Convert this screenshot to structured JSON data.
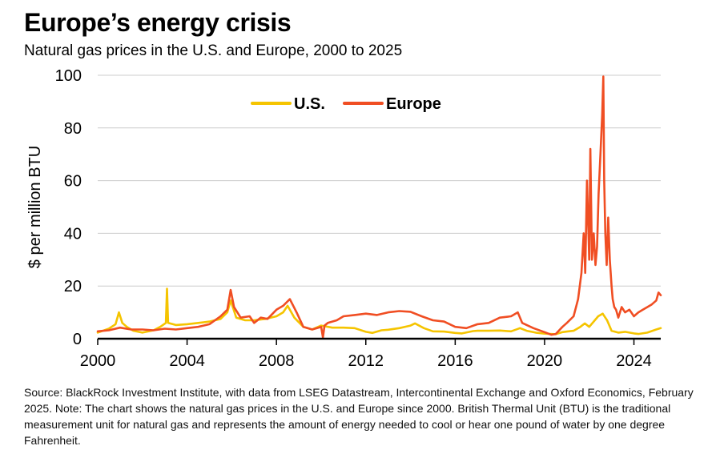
{
  "title": "Europe’s energy crisis",
  "subtitle": "Natural gas prices in the U.S. and Europe, 2000 to 2025",
  "source": "Source: BlackRock Investment Institute, with data from LSEG Datastream, Intercontinental Exchange and Oxford Economics, February 2025. Note: The chart shows the natural gas prices in the U.S. and Europe since 2000. British Thermal Unit (BTU) is the traditional measurement unit for natural gas and represents the amount of energy needed to cool or hear one pound of water by one degree Fahrenheit.",
  "colors": {
    "us": "#F5C400",
    "europe": "#F04E23",
    "grid": "#CCCCCC",
    "axis": "#000000"
  },
  "chart_data": {
    "type": "line",
    "ylabel": "$ per million BTU",
    "xlabel": "",
    "xlim": [
      2000,
      2025.2
    ],
    "ylim": [
      0,
      100
    ],
    "xticks": [
      2000,
      2004,
      2008,
      2012,
      2016,
      2020,
      2024
    ],
    "xtick_labels": [
      "2000",
      "2004",
      "2008",
      "2012",
      "2016",
      "2020",
      "2024"
    ],
    "yticks": [
      0,
      20,
      40,
      60,
      80,
      100
    ],
    "ytick_labels": [
      "0",
      "20",
      "40",
      "60",
      "80",
      "100"
    ],
    "grid": true,
    "legend": "top-center",
    "series": [
      {
        "name": "U.S.",
        "color": "#F5C400",
        "x": [
          2000.0,
          2000.5,
          2000.8,
          2000.95,
          2001.1,
          2001.3,
          2001.6,
          2002.0,
          2002.5,
          2002.8,
          2003.05,
          2003.1,
          2003.15,
          2003.5,
          2004.0,
          2004.5,
          2005.0,
          2005.5,
          2005.8,
          2005.95,
          2006.2,
          2006.6,
          2007.0,
          2007.5,
          2008.0,
          2008.3,
          2008.5,
          2008.8,
          2009.2,
          2009.6,
          2010.0,
          2010.5,
          2011.0,
          2011.5,
          2012.0,
          2012.3,
          2012.7,
          2013.0,
          2013.5,
          2014.0,
          2014.2,
          2014.6,
          2015.0,
          2015.5,
          2016.0,
          2016.3,
          2016.8,
          2017.0,
          2017.5,
          2018.0,
          2018.5,
          2018.9,
          2019.2,
          2019.6,
          2020.0,
          2020.5,
          2020.8,
          2021.0,
          2021.3,
          2021.6,
          2021.8,
          2022.0,
          2022.2,
          2022.4,
          2022.6,
          2022.8,
          2023.0,
          2023.3,
          2023.6,
          2024.0,
          2024.2,
          2024.6,
          2025.0,
          2025.2
        ],
        "values": [
          2.3,
          3.8,
          5.5,
          10.0,
          6.0,
          4.5,
          3.0,
          2.3,
          3.2,
          4.5,
          6.0,
          19.0,
          6.0,
          5.2,
          5.5,
          6.0,
          6.5,
          7.5,
          10.0,
          14.5,
          8.0,
          7.0,
          7.0,
          7.5,
          8.5,
          10.0,
          12.5,
          8.0,
          4.5,
          3.5,
          5.0,
          4.2,
          4.2,
          4.0,
          2.6,
          2.2,
          3.2,
          3.4,
          4.0,
          5.0,
          5.8,
          4.0,
          2.8,
          2.7,
          2.2,
          2.0,
          2.9,
          3.0,
          3.0,
          3.1,
          2.8,
          4.0,
          3.0,
          2.3,
          1.9,
          1.7,
          2.5,
          2.7,
          3.0,
          4.5,
          5.8,
          4.5,
          6.5,
          8.5,
          9.5,
          7.0,
          3.0,
          2.3,
          2.6,
          2.0,
          1.8,
          2.3,
          3.5,
          4.0
        ]
      },
      {
        "name": "Europe",
        "color": "#F04E23",
        "x": [
          2000.0,
          2000.5,
          2001.0,
          2001.5,
          2002.0,
          2002.5,
          2003.0,
          2003.5,
          2004.0,
          2004.5,
          2005.0,
          2005.5,
          2005.8,
          2005.95,
          2006.1,
          2006.4,
          2006.8,
          2007.0,
          2007.3,
          2007.6,
          2008.0,
          2008.3,
          2008.6,
          2008.9,
          2009.2,
          2009.6,
          2010.0,
          2010.08,
          2010.15,
          2010.3,
          2010.7,
          2011.0,
          2011.5,
          2012.0,
          2012.5,
          2013.0,
          2013.5,
          2014.0,
          2014.5,
          2015.0,
          2015.5,
          2016.0,
          2016.5,
          2017.0,
          2017.5,
          2018.0,
          2018.5,
          2018.8,
          2019.0,
          2019.5,
          2020.0,
          2020.3,
          2020.5,
          2020.8,
          2021.0,
          2021.3,
          2021.5,
          2021.65,
          2021.75,
          2021.82,
          2021.9,
          2022.0,
          2022.05,
          2022.12,
          2022.2,
          2022.28,
          2022.35,
          2022.42,
          2022.5,
          2022.58,
          2022.63,
          2022.67,
          2022.72,
          2022.78,
          2022.85,
          2022.92,
          2023.0,
          2023.05,
          2023.12,
          2023.2,
          2023.3,
          2023.45,
          2023.6,
          2023.8,
          2024.0,
          2024.2,
          2024.4,
          2024.6,
          2024.8,
          2025.0,
          2025.1,
          2025.2
        ],
        "values": [
          2.8,
          3.2,
          4.2,
          3.5,
          3.5,
          3.2,
          3.8,
          3.5,
          4.0,
          4.5,
          5.5,
          8.5,
          11.0,
          18.5,
          12.0,
          8.0,
          8.5,
          6.0,
          8.0,
          7.5,
          11.0,
          12.5,
          15.0,
          10.0,
          4.5,
          3.5,
          4.5,
          0.5,
          5.0,
          6.0,
          7.0,
          8.5,
          9.0,
          9.5,
          9.0,
          10.0,
          10.5,
          10.2,
          8.5,
          7.0,
          6.5,
          4.5,
          4.0,
          5.5,
          6.0,
          8.0,
          8.5,
          10.0,
          6.0,
          4.0,
          2.5,
          1.5,
          1.8,
          4.5,
          6.0,
          8.5,
          15.0,
          25.0,
          40.0,
          25.0,
          60.0,
          30.0,
          72.0,
          30.0,
          40.0,
          28.0,
          35.0,
          55.0,
          70.0,
          85.0,
          99.5,
          60.0,
          40.0,
          28.0,
          46.0,
          30.0,
          20.0,
          15.0,
          12.0,
          11.0,
          8.0,
          12.0,
          10.0,
          11.0,
          8.5,
          10.0,
          11.0,
          12.0,
          13.0,
          14.5,
          17.5,
          16.5
        ]
      }
    ]
  }
}
